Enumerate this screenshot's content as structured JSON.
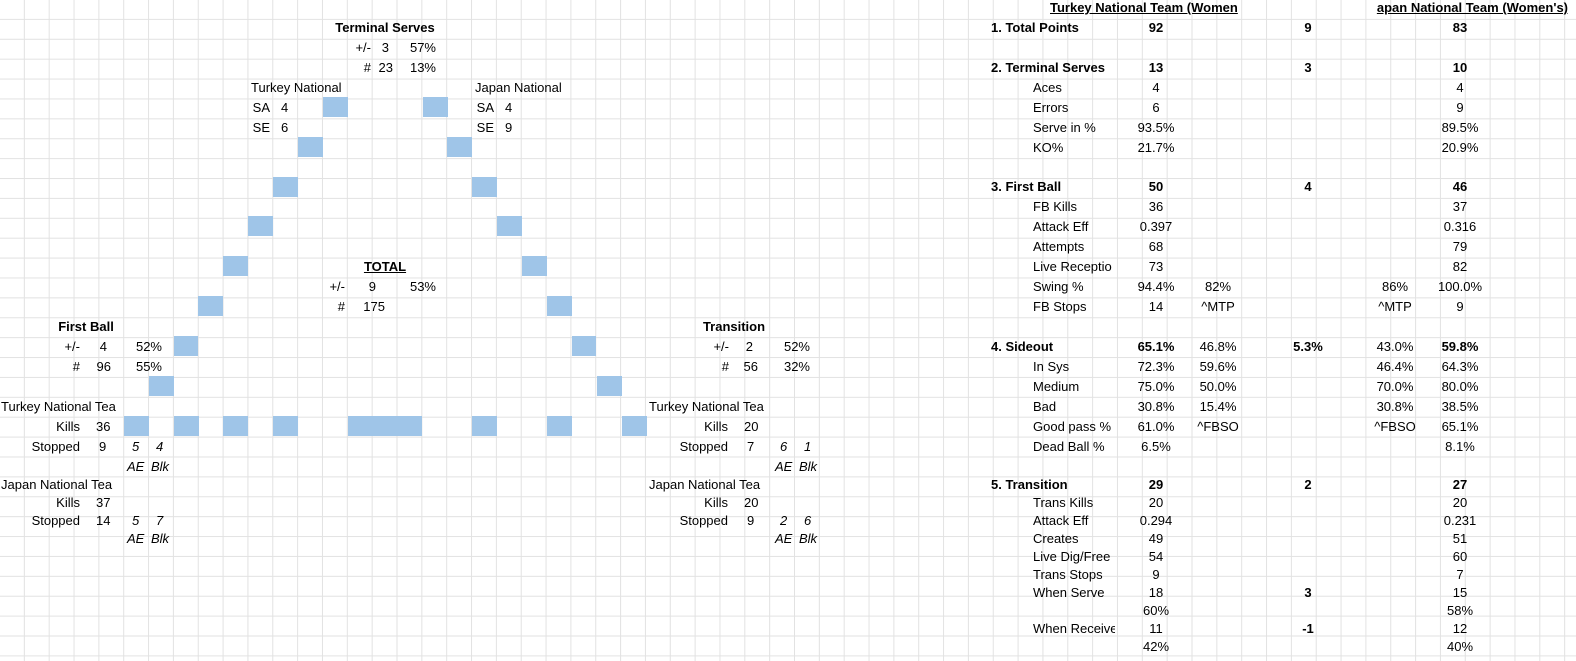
{
  "left": {
    "terminal_serves": {
      "title": "Terminal Serves",
      "pm_label": "+/-",
      "pm_value": "3",
      "pm_pct": "57%",
      "n_label": "#",
      "n_value": "23",
      "n_pct": "13%"
    },
    "turkey_label": "Turkey National",
    "japan_label": "Japan National",
    "turkey_sa": {
      "label": "SA",
      "value": "4"
    },
    "turkey_se": {
      "label": "SE",
      "value": "6"
    },
    "japan_sa": {
      "label": "SA",
      "value": "4"
    },
    "japan_se": {
      "label": "SE",
      "value": "9"
    },
    "total": {
      "title": "TOTAL",
      "pm_label": "+/-",
      "pm_value": "9",
      "pm_pct": "53%",
      "n_label": "#",
      "n_value": "175"
    },
    "first_ball": {
      "title": "First Ball",
      "pm_label": "+/-",
      "pm_value": "4",
      "pm_pct": "52%",
      "n_label": "#",
      "n_value": "96",
      "n_pct": "55%",
      "team1": "Turkey National Tea",
      "team1_kills_label": "Kills",
      "team1_kills": "36",
      "team1_stopped_label": "Stopped",
      "team1_stopped": "9",
      "team1_ae": "5",
      "team1_blk": "4",
      "team2": "Japan National Tea",
      "team2_kills_label": "Kills",
      "team2_kills": "37",
      "team2_stopped_label": "Stopped",
      "team2_stopped": "14",
      "team2_ae": "5",
      "team2_blk": "7",
      "ae_label": "AE",
      "blk_label": "Blk"
    },
    "transition": {
      "title": "Transition",
      "pm_label": "+/-",
      "pm_value": "2",
      "pm_pct": "52%",
      "n_label": "#",
      "n_value": "56",
      "n_pct": "32%",
      "team1": "Turkey National Tea",
      "team1_kills_label": "Kills",
      "team1_kills": "20",
      "team1_stopped_label": "Stopped",
      "team1_stopped": "7",
      "team1_ae": "6",
      "team1_blk": "1",
      "team2": "Japan National Tea",
      "team2_kills_label": "Kills",
      "team2_kills": "20",
      "team2_stopped_label": "Stopped",
      "team2_stopped": "9",
      "team2_ae": "2",
      "team2_blk": "6",
      "ae_label": "AE",
      "blk_label": "Blk"
    }
  },
  "right": {
    "header_turkey": "Turkey National Team (Women",
    "header_japan": "apan National Team (Women's)",
    "rows": [
      {
        "label": "1. Total Points",
        "bold": true,
        "indent": false,
        "t": "92",
        "t2": "",
        "diff": "9",
        "j2": "",
        "j": "83"
      },
      {
        "label": "2. Terminal Serves",
        "bold": true,
        "indent": false,
        "t": "13",
        "t2": "",
        "diff": "3",
        "j2": "",
        "j": "10"
      },
      {
        "label": "Aces",
        "bold": false,
        "indent": true,
        "t": "4",
        "t2": "",
        "diff": "",
        "j2": "",
        "j": "4"
      },
      {
        "label": "Errors",
        "bold": false,
        "indent": true,
        "t": "6",
        "t2": "",
        "diff": "",
        "j2": "",
        "j": "9"
      },
      {
        "label": "Serve in %",
        "bold": false,
        "indent": true,
        "t": "93.5%",
        "t2": "",
        "diff": "",
        "j2": "",
        "j": "89.5%"
      },
      {
        "label": "KO%",
        "bold": false,
        "indent": true,
        "t": "21.7%",
        "t2": "",
        "diff": "",
        "j2": "",
        "j": "20.9%"
      },
      {
        "label": "3. First Ball",
        "bold": true,
        "indent": false,
        "t": "50",
        "t2": "",
        "diff": "4",
        "j2": "",
        "j": "46"
      },
      {
        "label": "FB Kills",
        "bold": false,
        "indent": true,
        "t": "36",
        "t2": "",
        "diff": "",
        "j2": "",
        "j": "37"
      },
      {
        "label": "Attack Eff",
        "bold": false,
        "indent": true,
        "t": "0.397",
        "t2": "",
        "diff": "",
        "j2": "",
        "j": "0.316"
      },
      {
        "label": "Attempts",
        "bold": false,
        "indent": true,
        "t": "68",
        "t2": "",
        "diff": "",
        "j2": "",
        "j": "79"
      },
      {
        "label": "Live Receptio",
        "bold": false,
        "indent": true,
        "t": "73",
        "t2": "",
        "diff": "",
        "j2": "",
        "j": "82"
      },
      {
        "label": "Swing %",
        "bold": false,
        "indent": true,
        "t": "94.4%",
        "t2": "82%",
        "diff": "",
        "j2": "86%",
        "j": "100.0%"
      },
      {
        "label": "FB Stops",
        "bold": false,
        "indent": true,
        "t": "14",
        "t2": "^MTP",
        "diff": "",
        "j2": "^MTP",
        "j": "9"
      },
      {
        "label": "4. Sideout",
        "bold": true,
        "indent": false,
        "t": "65.1%",
        "t2": "46.8%",
        "diff": "5.3%",
        "j2": "43.0%",
        "j": "59.8%"
      },
      {
        "label": "In Sys",
        "bold": false,
        "indent": true,
        "t": "72.3%",
        "t2": "59.6%",
        "diff": "",
        "j2": "46.4%",
        "j": "64.3%"
      },
      {
        "label": "Medium",
        "bold": false,
        "indent": true,
        "t": "75.0%",
        "t2": "50.0%",
        "diff": "",
        "j2": "70.0%",
        "j": "80.0%"
      },
      {
        "label": "Bad",
        "bold": false,
        "indent": true,
        "t": "30.8%",
        "t2": "15.4%",
        "diff": "",
        "j2": "30.8%",
        "j": "38.5%"
      },
      {
        "label": "Good pass %",
        "bold": false,
        "indent": true,
        "t": "61.0%",
        "t2": "^FBSO",
        "diff": "",
        "j2": "^FBSO",
        "j": "65.1%"
      },
      {
        "label": "Dead Ball %",
        "bold": false,
        "indent": true,
        "t": "6.5%",
        "t2": "",
        "diff": "",
        "j2": "",
        "j": "8.1%"
      },
      {
        "label": "5. Transition",
        "bold": true,
        "indent": false,
        "t": "29",
        "t2": "",
        "diff": "2",
        "j2": "",
        "j": "27"
      },
      {
        "label": "Trans Kills",
        "bold": false,
        "indent": true,
        "t": "20",
        "t2": "",
        "diff": "",
        "j2": "",
        "j": "20"
      },
      {
        "label": "Attack Eff",
        "bold": false,
        "indent": true,
        "t": "0.294",
        "t2": "",
        "diff": "",
        "j2": "",
        "j": "0.231"
      },
      {
        "label": "Creates",
        "bold": false,
        "indent": true,
        "t": "49",
        "t2": "",
        "diff": "",
        "j2": "",
        "j": "51"
      },
      {
        "label": "Live Dig/Free",
        "bold": false,
        "indent": true,
        "t": "54",
        "t2": "",
        "diff": "",
        "j2": "",
        "j": "60"
      },
      {
        "label": "Trans Stops",
        "bold": false,
        "indent": true,
        "t": "9",
        "t2": "",
        "diff": "",
        "j2": "",
        "j": "7"
      },
      {
        "label": "When Serve",
        "bold": false,
        "indent": true,
        "t": "18",
        "t2": "",
        "diff": "3",
        "j2": "",
        "j": "15"
      },
      {
        "label": "",
        "bold": false,
        "indent": true,
        "t": "60%",
        "t2": "",
        "diff": "",
        "j2": "",
        "j": "58%"
      },
      {
        "label": "When Receive",
        "bold": false,
        "indent": true,
        "t": "11",
        "t2": "",
        "diff": "-1",
        "j2": "",
        "j": "12"
      },
      {
        "label": "",
        "bold": false,
        "indent": true,
        "t": "42%",
        "t2": "",
        "diff": "",
        "j2": "",
        "j": "40%"
      }
    ]
  }
}
